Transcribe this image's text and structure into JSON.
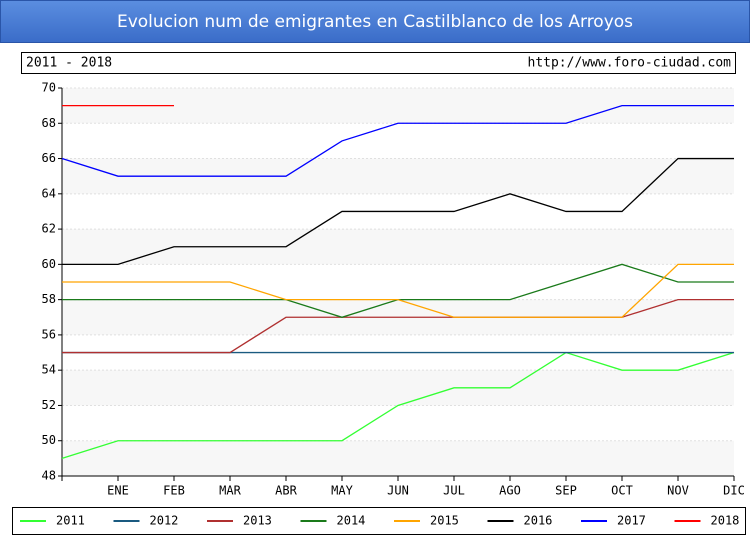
{
  "chart_data": {
    "type": "line",
    "title": "Evolucion num de emigrantes en Castilblanco de los Arroyos",
    "subtitle": "2011 - 2018",
    "source": "http://www.foro-ciudad.com",
    "categories": [
      null,
      "ENE",
      "FEB",
      "MAR",
      "ABR",
      "MAY",
      "JUN",
      "JUL",
      "AGO",
      "SEP",
      "OCT",
      "NOV",
      "DIC"
    ],
    "ylim": [
      48,
      70
    ],
    "yticks": [
      48,
      50,
      52,
      54,
      56,
      58,
      60,
      62,
      64,
      66,
      68,
      70
    ],
    "grid": true,
    "legend": "bottom",
    "series": [
      {
        "name": "2011",
        "color": "#33ff33",
        "values": [
          49,
          50,
          50,
          50,
          50,
          50,
          52,
          53,
          53,
          55,
          54,
          54,
          55
        ]
      },
      {
        "name": "2012",
        "color": "#1a5a80",
        "values": [
          55,
          55,
          55,
          55,
          55,
          55,
          55,
          55,
          55,
          55,
          55,
          55,
          55
        ]
      },
      {
        "name": "2013",
        "color": "#b03030",
        "values": [
          55,
          55,
          55,
          55,
          57,
          57,
          57,
          57,
          57,
          57,
          57,
          58,
          58
        ]
      },
      {
        "name": "2014",
        "color": "#1a7a1a",
        "values": [
          58,
          58,
          58,
          58,
          58,
          57,
          58,
          58,
          58,
          59,
          60,
          59,
          59
        ]
      },
      {
        "name": "2015",
        "color": "#ffa500",
        "values": [
          59,
          59,
          59,
          59,
          58,
          58,
          58,
          57,
          57,
          57,
          57,
          60,
          60
        ]
      },
      {
        "name": "2016",
        "color": "#000000",
        "values": [
          60,
          60,
          61,
          61,
          61,
          63,
          63,
          63,
          64,
          63,
          63,
          66,
          66
        ]
      },
      {
        "name": "2017",
        "color": "#0000ff",
        "values": [
          66,
          65,
          65,
          65,
          65,
          67,
          68,
          68,
          68,
          68,
          69,
          69,
          69
        ]
      },
      {
        "name": "2018",
        "color": "#ff0000",
        "values": [
          69,
          69,
          69,
          null,
          null,
          null,
          null,
          null,
          null,
          null,
          null,
          null,
          null
        ]
      }
    ]
  }
}
